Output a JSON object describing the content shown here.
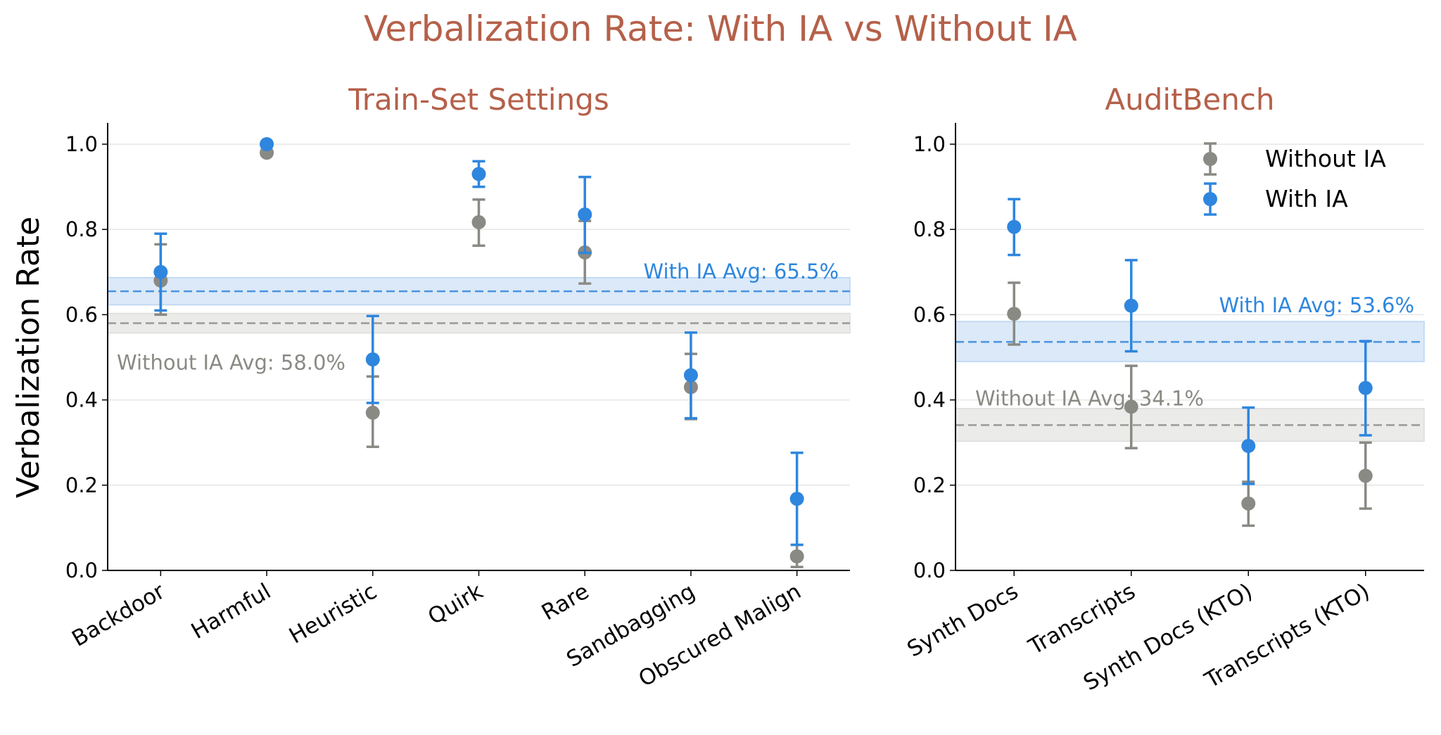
{
  "colors": {
    "title": "#b5604a",
    "without": "#8a8a84",
    "with": "#2e86de",
    "with_band": "#dbe9f8",
    "without_band": "#ebebea",
    "grid": "#e6e6e6"
  },
  "chart_data": {
    "title": "Verbalization Rate: With IA vs Without IA",
    "ylabel": "Verbalization Rate",
    "ylim": [
      0,
      1.05
    ],
    "yticks": [
      "0.0",
      "0.2",
      "0.4",
      "0.6",
      "0.8",
      "1.0"
    ],
    "legend": {
      "placement": "top-right",
      "entries": [
        "Without IA",
        "With IA"
      ]
    },
    "panels": [
      {
        "type": "scatter",
        "title": "Train-Set Settings",
        "categories": [
          "Backdoor",
          "Harmful",
          "Heuristic",
          "Quirk",
          "Rare",
          "Sandbagging",
          "Obscured Malign"
        ],
        "series": [
          {
            "name": "Without IA",
            "values": [
              0.68,
              0.98,
              0.37,
              0.817,
              0.746,
              0.43,
              0.033
            ],
            "lower": [
              0.6,
              0.975,
              0.29,
              0.762,
              0.673,
              0.355,
              0.008
            ],
            "upper": [
              0.765,
              0.985,
              0.455,
              0.87,
              0.82,
              0.508,
              0.06
            ]
          },
          {
            "name": "With IA",
            "values": [
              0.7,
              1.0,
              0.495,
              0.93,
              0.835,
              0.458,
              0.168
            ],
            "lower": [
              0.61,
              1.0,
              0.393,
              0.9,
              0.745,
              0.357,
              0.06
            ],
            "upper": [
              0.79,
              1.0,
              0.597,
              0.96,
              0.923,
              0.558,
              0.276
            ]
          }
        ],
        "averages": [
          {
            "name": "With IA",
            "value": 0.655,
            "band": [
              0.623,
              0.687
            ],
            "label": "With IA Avg: 65.5%"
          },
          {
            "name": "Without IA",
            "value": 0.58,
            "band": [
              0.557,
              0.603
            ],
            "label": "Without IA Avg: 58.0%"
          }
        ]
      },
      {
        "type": "scatter",
        "title": "AuditBench",
        "categories": [
          "Synth Docs",
          "Transcripts",
          "Synth Docs (KTO)",
          "Transcripts (KTO)"
        ],
        "series": [
          {
            "name": "Without IA",
            "values": [
              0.602,
              0.384,
              0.157,
              0.222
            ],
            "lower": [
              0.53,
              0.287,
              0.105,
              0.145
            ],
            "upper": [
              0.675,
              0.48,
              0.208,
              0.3
            ]
          },
          {
            "name": "With IA",
            "values": [
              0.806,
              0.621,
              0.292,
              0.428
            ],
            "lower": [
              0.74,
              0.514,
              0.203,
              0.317
            ],
            "upper": [
              0.871,
              0.728,
              0.382,
              0.538
            ]
          }
        ],
        "averages": [
          {
            "name": "With IA",
            "value": 0.536,
            "band": [
              0.49,
              0.584
            ],
            "label": "With IA Avg: 53.6%"
          },
          {
            "name": "Without IA",
            "value": 0.341,
            "band": [
              0.303,
              0.38
            ],
            "label": "Without IA Avg: 34.1%"
          }
        ]
      }
    ]
  }
}
